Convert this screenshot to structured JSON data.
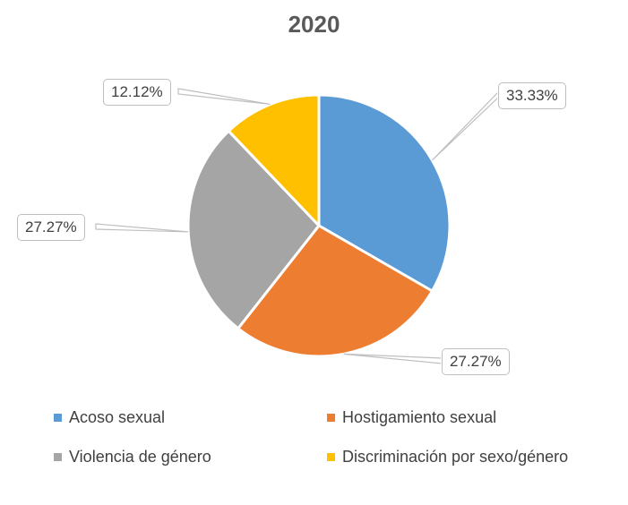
{
  "chart_data": {
    "type": "pie",
    "title": "2020",
    "categories": [
      "Acoso sexual",
      "Hostigamiento sexual",
      "Violencia de género",
      "Discriminación por sexo/género"
    ],
    "values": [
      33.33,
      27.27,
      27.27,
      12.12
    ],
    "data_labels": [
      "33.33%",
      "27.27%",
      "27.27%",
      "12.12%"
    ],
    "colors": [
      "#5b9bd5",
      "#ed7d31",
      "#a5a5a5",
      "#ffc000"
    ],
    "legend_position": "bottom"
  }
}
